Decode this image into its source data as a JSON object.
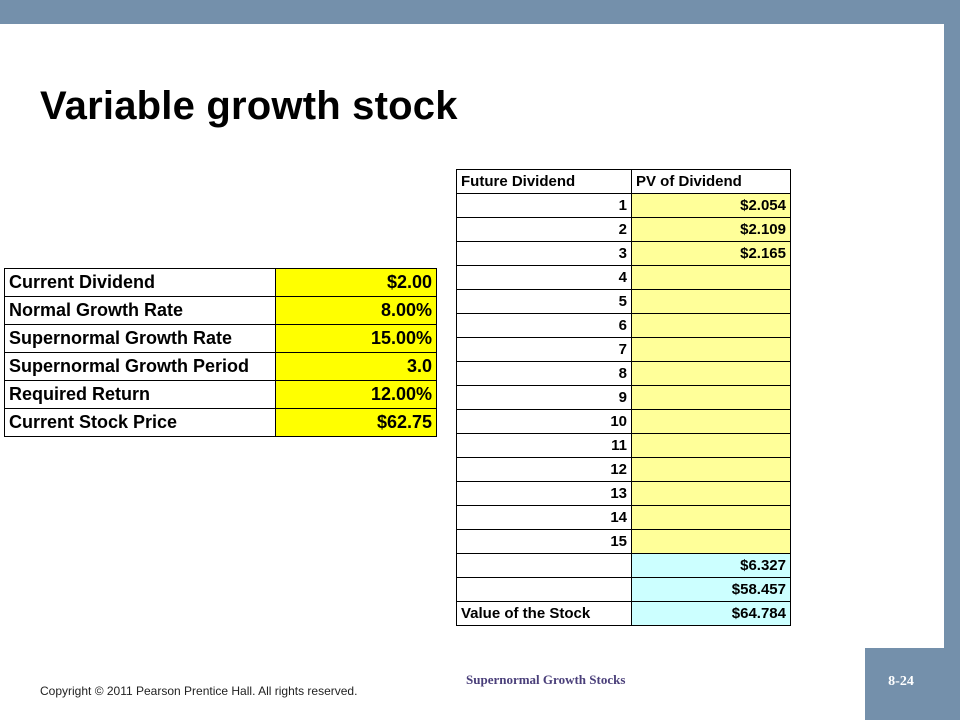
{
  "slide": {
    "title": "Variable growth stock",
    "footer_copyright": "Copyright © 2011 Pearson Prentice Hall.  All rights reserved.",
    "footer_topic": "Supernormal Growth Stocks",
    "page_number": "8-24"
  },
  "inputs": [
    {
      "label": "Current Dividend",
      "value": "$2.00"
    },
    {
      "label": "Normal Growth Rate",
      "value": "8.00%"
    },
    {
      "label": "Supernormal Growth Rate",
      "value": "15.00%"
    },
    {
      "label": "Supernormal Growth Period",
      "value": "3.0"
    },
    {
      "label": "Required Return",
      "value": "12.00%"
    },
    {
      "label": "Current Stock Price",
      "value": "$62.75"
    }
  ],
  "dividends": {
    "headers": [
      "Future Dividend",
      "PV of Dividend"
    ],
    "rows": [
      {
        "n": "1",
        "pv": "$2.054"
      },
      {
        "n": "2",
        "pv": "$2.109"
      },
      {
        "n": "3",
        "pv": "$2.165"
      },
      {
        "n": "4",
        "pv": ""
      },
      {
        "n": "5",
        "pv": ""
      },
      {
        "n": "6",
        "pv": ""
      },
      {
        "n": "7",
        "pv": ""
      },
      {
        "n": "8",
        "pv": ""
      },
      {
        "n": "9",
        "pv": ""
      },
      {
        "n": "10",
        "pv": ""
      },
      {
        "n": "11",
        "pv": ""
      },
      {
        "n": "12",
        "pv": ""
      },
      {
        "n": "13",
        "pv": ""
      },
      {
        "n": "14",
        "pv": ""
      },
      {
        "n": "15",
        "pv": ""
      }
    ],
    "totals": [
      {
        "label": "",
        "value": "$6.327"
      },
      {
        "label": "",
        "value": "$58.457"
      },
      {
        "label": "Value of the Stock",
        "value": "$64.784"
      }
    ]
  },
  "colors": {
    "accent_bar": "#7490ab",
    "input_highlight": "#ffff00",
    "pv_highlight": "#ffff99",
    "totals_highlight": "#ccffff"
  }
}
